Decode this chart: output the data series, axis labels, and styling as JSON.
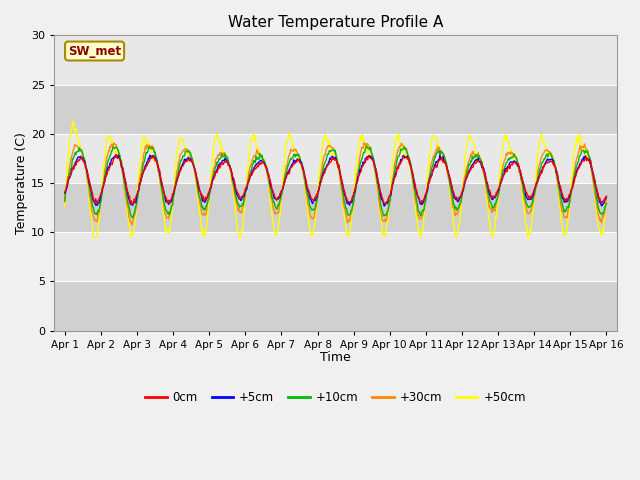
{
  "title": "Water Temperature Profile A",
  "xlabel": "Time",
  "ylabel": "Temperature (C)",
  "ylim": [
    0,
    30
  ],
  "yticks": [
    0,
    5,
    10,
    15,
    20,
    25,
    30
  ],
  "annotation": "SW_met",
  "annotation_color": "#8B0000",
  "annotation_bg": "#FFFFCC",
  "fig_facecolor": "#F0F0F0",
  "plot_facecolor": "#D8D8D8",
  "series": {
    "0cm": {
      "color": "#FF0000",
      "label": "0cm"
    },
    "+5cm": {
      "color": "#0000FF",
      "label": "+5cm"
    },
    "+10cm": {
      "color": "#00BB00",
      "label": "+10cm"
    },
    "+30cm": {
      "color": "#FF8C00",
      "label": "+30cm"
    },
    "+50cm": {
      "color": "#FFFF00",
      "label": "+50cm"
    }
  },
  "x_tick_labels": [
    "Apr 1",
    "Apr 2",
    "Apr 3",
    "Apr 4",
    "Apr 5",
    "Apr 6",
    "Apr 7",
    "Apr 8",
    "Apr 9",
    "Apr 10",
    "Apr 11",
    "Apr 12",
    "Apr 13",
    "Apr 14",
    "Apr 15",
    "Apr 16"
  ],
  "x_tick_positions": [
    0,
    1,
    2,
    3,
    4,
    5,
    6,
    7,
    8,
    9,
    10,
    11,
    12,
    13,
    14,
    15
  ],
  "band_colors": [
    "#E8E8E8",
    "#D0D0D0"
  ],
  "band_ranges": [
    [
      25,
      30
    ],
    [
      20,
      25
    ],
    [
      15,
      20
    ],
    [
      10,
      15
    ],
    [
      5,
      10
    ],
    [
      0,
      5
    ]
  ]
}
